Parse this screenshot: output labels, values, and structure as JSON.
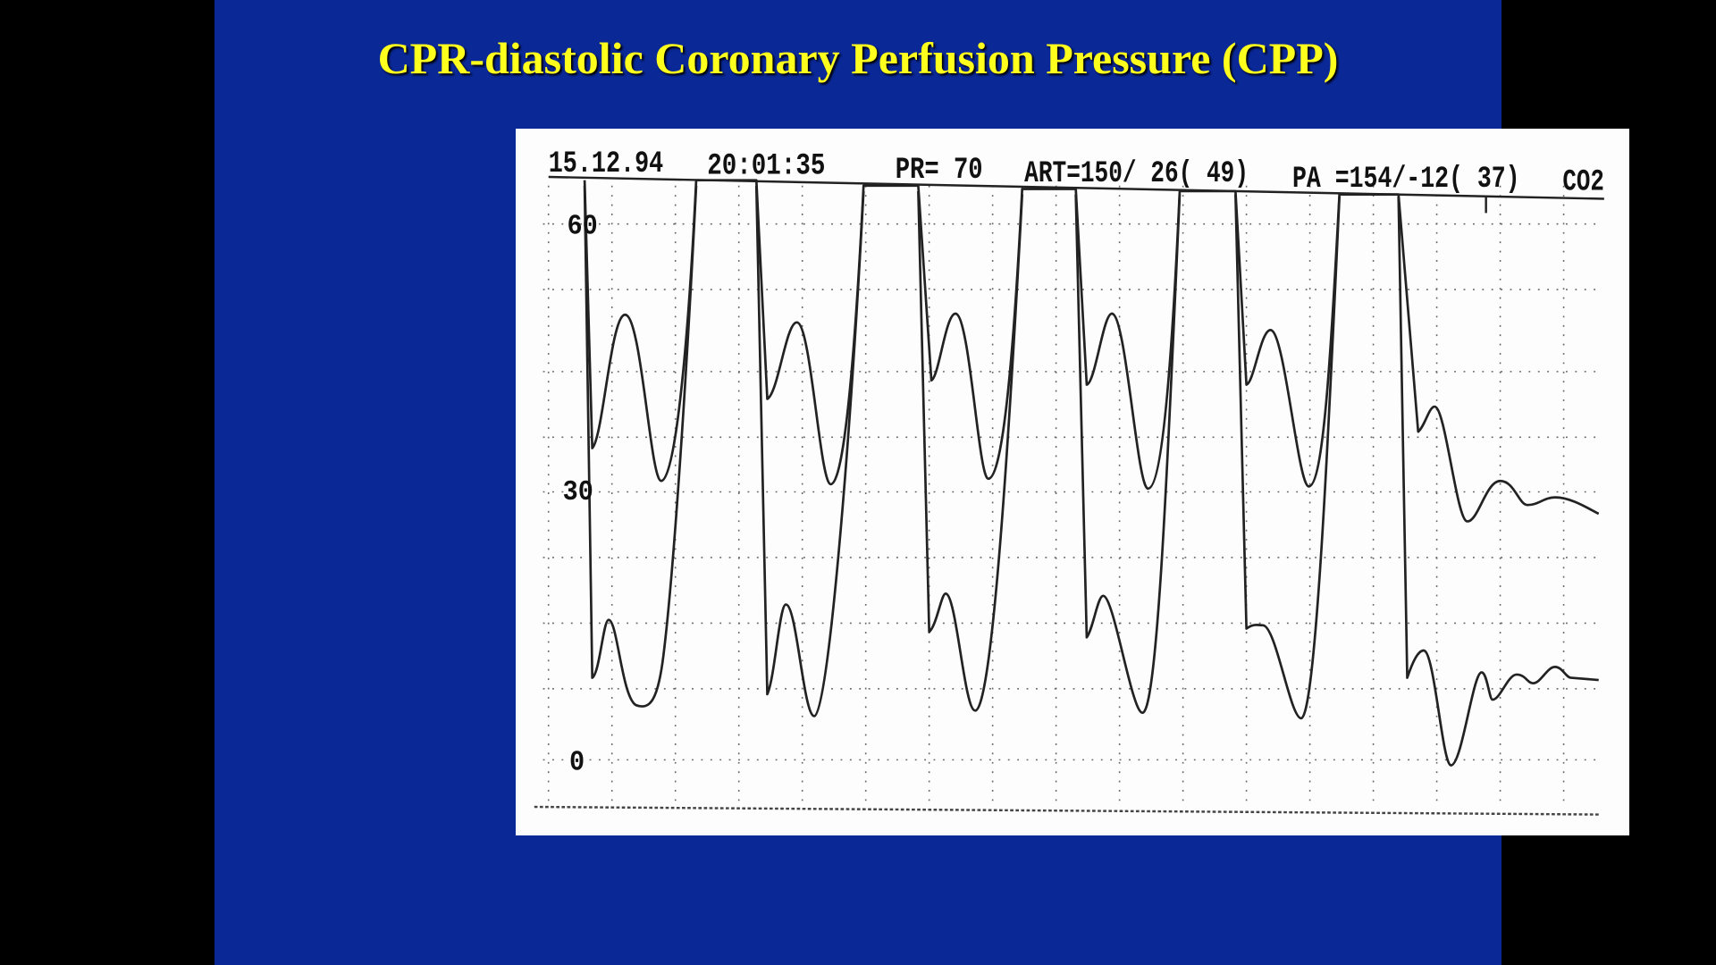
{
  "title": "CPR-diastolic Coronary Perfusion Pressure (CPP)",
  "strip": {
    "header": [
      "15.12.94",
      "20:01:35",
      "PR= 70",
      "ART=150/ 26( 49)",
      "PA =154/-12( 37)",
      "CO2"
    ],
    "scale": [
      "60",
      "30",
      "0"
    ]
  }
}
